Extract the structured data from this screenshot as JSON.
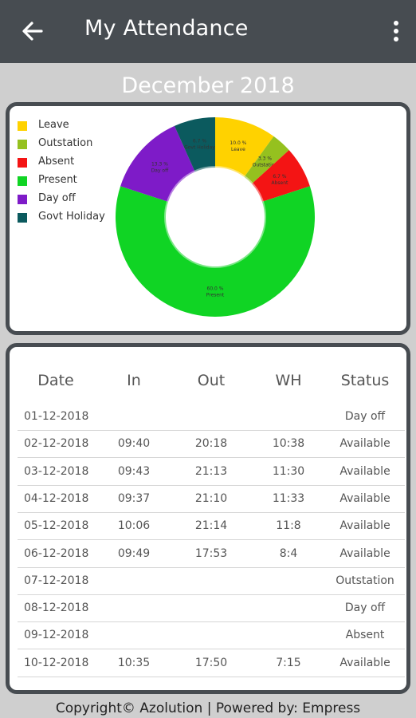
{
  "appbar": {
    "title": "My Attendance",
    "back_icon": "arrow-left-icon",
    "menu_icon": "more-vertical-icon"
  },
  "month": "December 2018",
  "chart_data": {
    "type": "pie",
    "style": "donut",
    "legend_placement": "top-left",
    "categories": [
      "Leave",
      "Outstation",
      "Absent",
      "Present",
      "Day off",
      "Govt Holiday"
    ],
    "values": [
      10.0,
      3.3,
      6.7,
      60.0,
      13.3,
      6.7
    ],
    "labels": [
      "10.0 %",
      "3.3 %",
      "6.7 %",
      "60.0 %",
      "13.3 %",
      "6.7 %"
    ],
    "colors": [
      "#ffd200",
      "#95c11f",
      "#f41414",
      "#10d424",
      "#7e1bc8",
      "#0b5a5e"
    ]
  },
  "table": {
    "headers": [
      "Date",
      "In",
      "Out",
      "WH",
      "Status"
    ],
    "rows": [
      {
        "date": "01-12-2018",
        "in": "",
        "out": "",
        "wh": "",
        "status": "Day off"
      },
      {
        "date": "02-12-2018",
        "in": "09:40",
        "out": "20:18",
        "wh": "10:38",
        "status": "Available"
      },
      {
        "date": "03-12-2018",
        "in": "09:43",
        "out": "21:13",
        "wh": "11:30",
        "status": "Available"
      },
      {
        "date": "04-12-2018",
        "in": "09:37",
        "out": "21:10",
        "wh": "11:33",
        "status": "Available"
      },
      {
        "date": "05-12-2018",
        "in": "10:06",
        "out": "21:14",
        "wh": "11:8",
        "status": "Available"
      },
      {
        "date": "06-12-2018",
        "in": "09:49",
        "out": "17:53",
        "wh": "8:4",
        "status": "Available"
      },
      {
        "date": "07-12-2018",
        "in": "",
        "out": "",
        "wh": "",
        "status": "Outstation"
      },
      {
        "date": "08-12-2018",
        "in": "",
        "out": "",
        "wh": "",
        "status": "Day off"
      },
      {
        "date": "09-12-2018",
        "in": "",
        "out": "",
        "wh": "",
        "status": "Absent"
      },
      {
        "date": "10-12-2018",
        "in": "10:35",
        "out": "17:50",
        "wh": "7:15",
        "status": "Available"
      }
    ]
  },
  "footer": "Copyright© Azolution | Powered by: Empress"
}
